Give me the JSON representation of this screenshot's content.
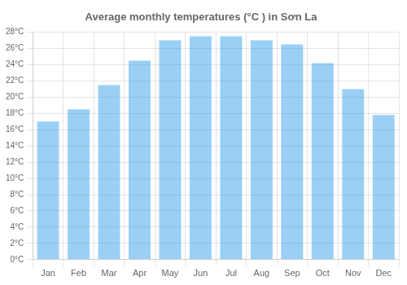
{
  "chart_data": {
    "type": "bar",
    "title": "Average monthly temperatures (°C ) in Sơn La",
    "categories": [
      "Jan",
      "Feb",
      "Mar",
      "Apr",
      "May",
      "Jun",
      "Jul",
      "Aug",
      "Sep",
      "Oct",
      "Nov",
      "Dec"
    ],
    "values": [
      17.0,
      18.5,
      21.5,
      24.5,
      27.0,
      27.5,
      27.5,
      27.0,
      26.5,
      24.2,
      21.0,
      17.8
    ],
    "ylim": [
      0,
      28
    ],
    "yticks": [
      {
        "value": 0,
        "label": "0°C"
      },
      {
        "value": 2,
        "label": "2°C"
      },
      {
        "value": 4,
        "label": "4°C"
      },
      {
        "value": 6,
        "label": "6°C"
      },
      {
        "value": 8,
        "label": "8°C"
      },
      {
        "value": 10,
        "label": "10°C"
      },
      {
        "value": 12,
        "label": "12°C"
      },
      {
        "value": 14,
        "label": "14°C"
      },
      {
        "value": 16,
        "label": "16°C"
      },
      {
        "value": 18,
        "label": "18°C"
      },
      {
        "value": 20,
        "label": "20°C"
      },
      {
        "value": 22,
        "label": "22°C"
      },
      {
        "value": 24,
        "label": "24°C"
      },
      {
        "value": 26,
        "label": "26°C"
      },
      {
        "value": 28,
        "label": "28°C"
      }
    ],
    "grid": true
  }
}
